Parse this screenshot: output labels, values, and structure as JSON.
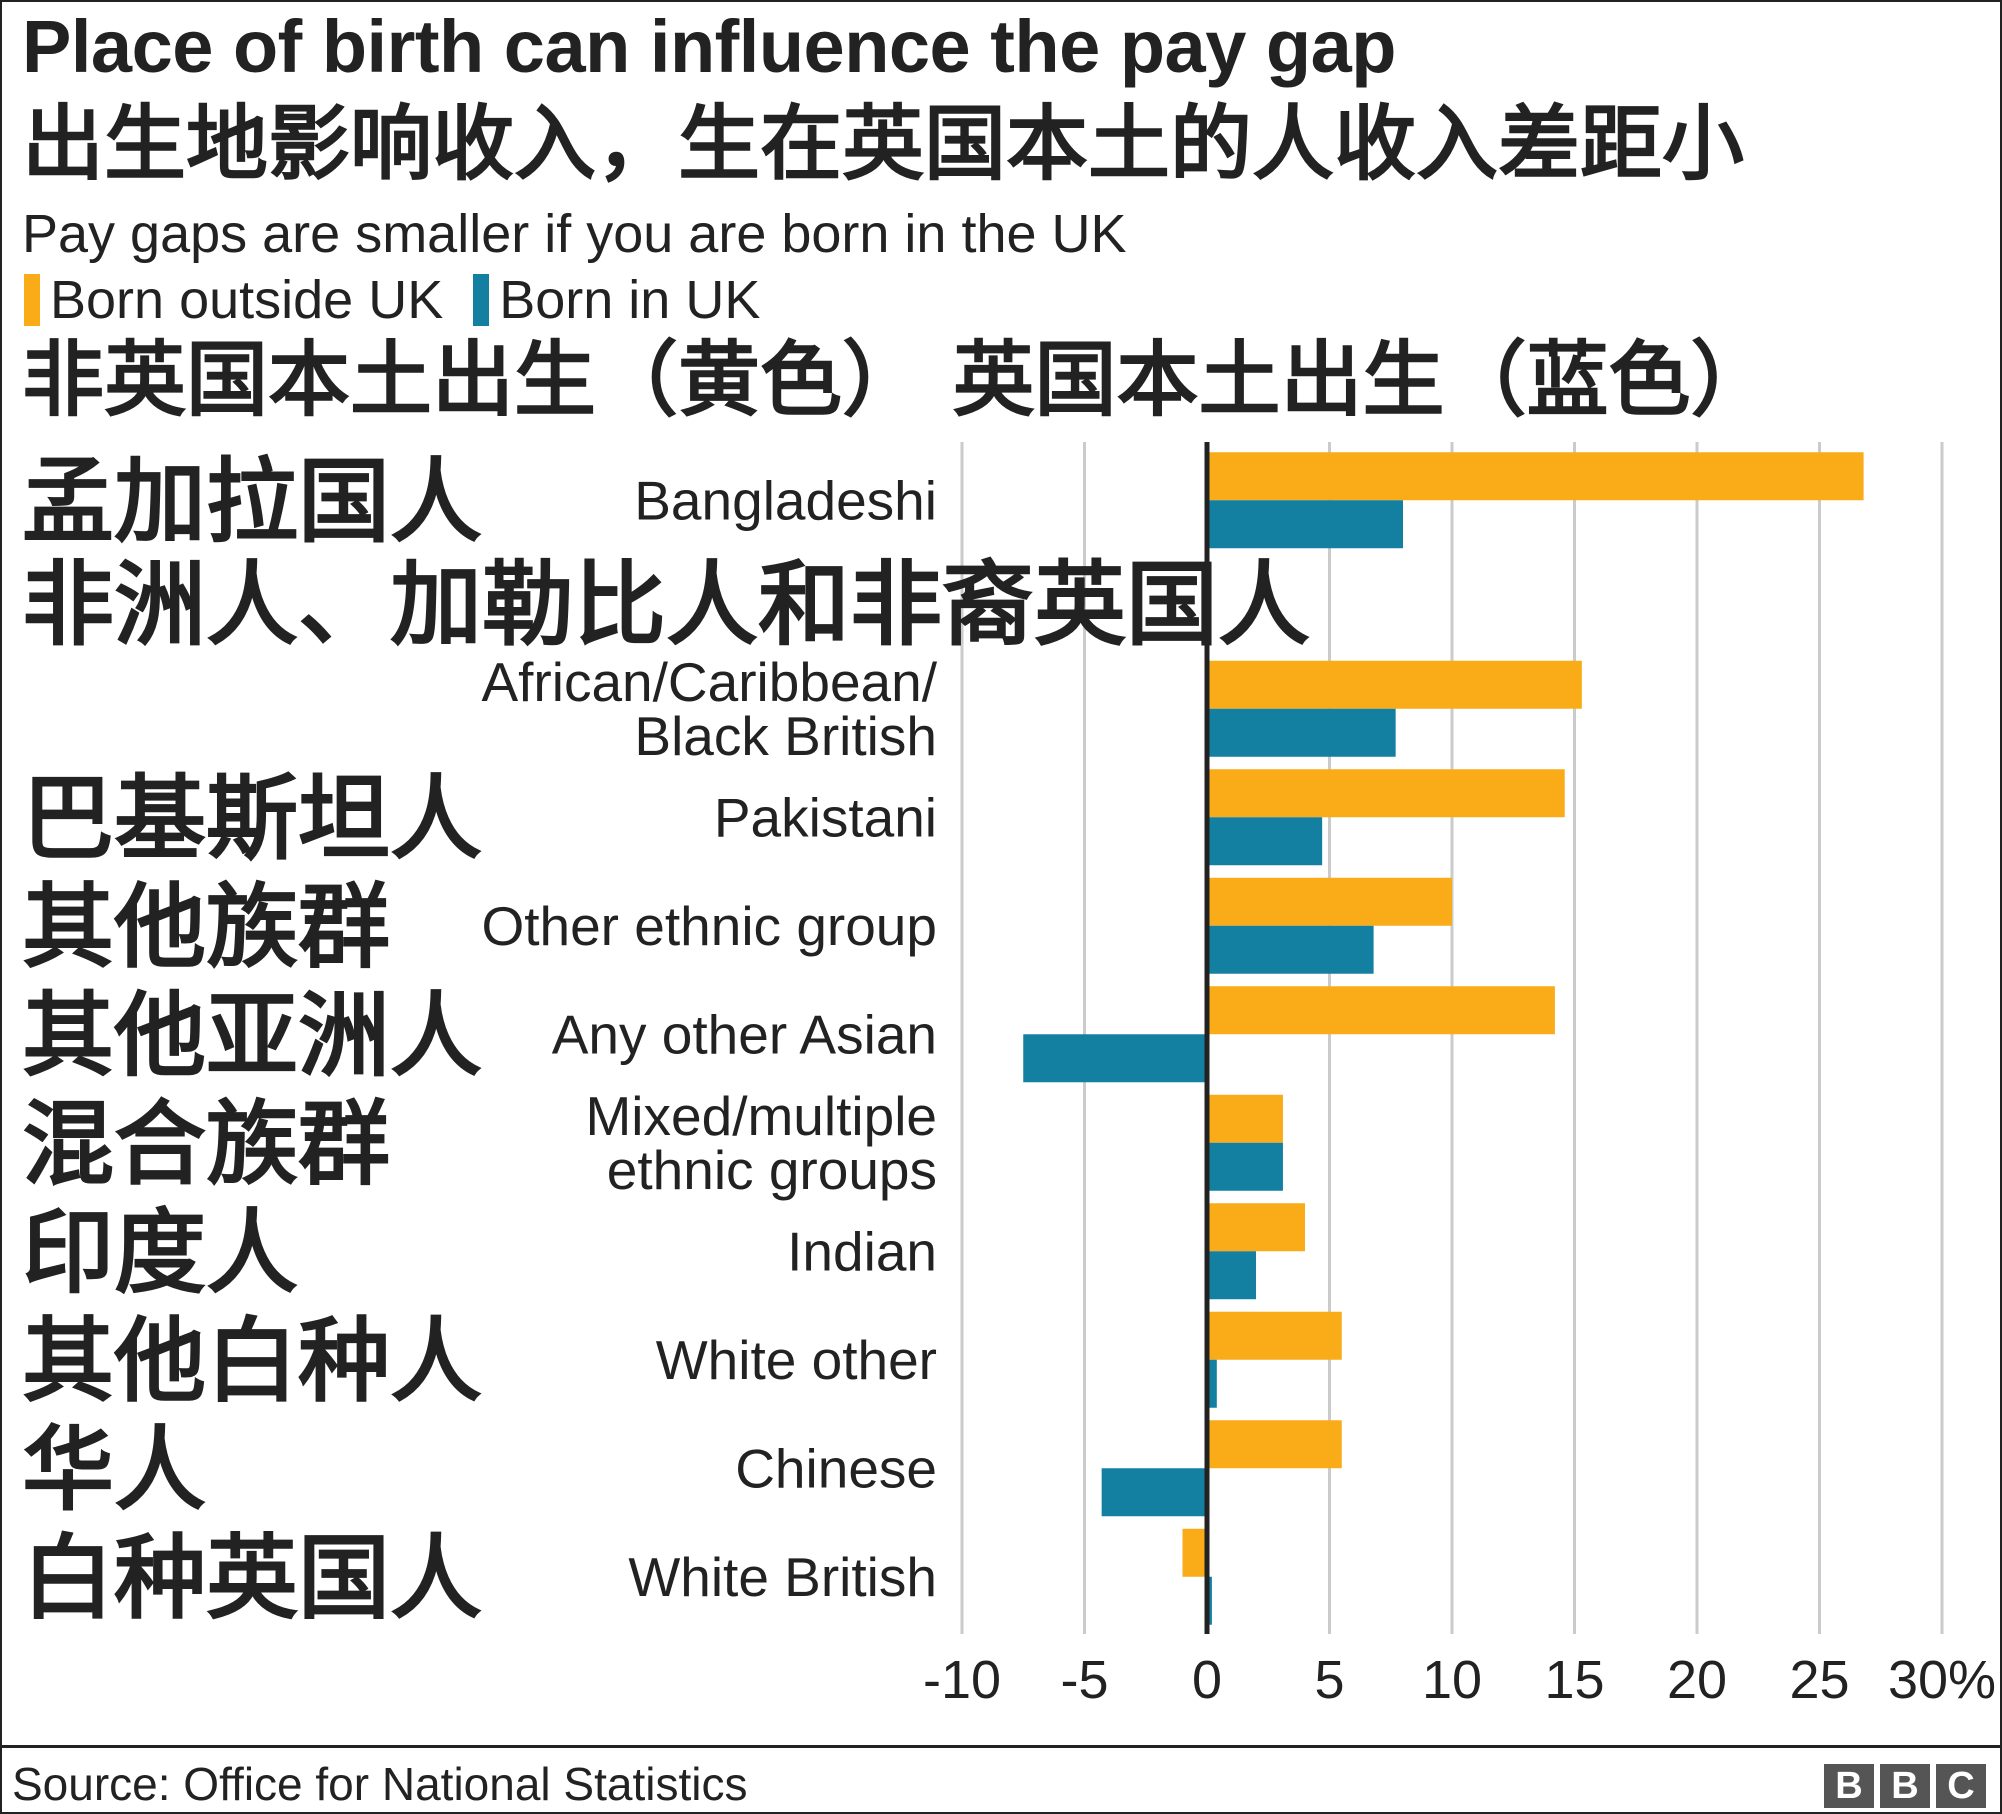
{
  "title": "Place of birth can influence the pay gap",
  "subtitle": "Pay gaps are smaller if you are born in the UK",
  "cn_title": "出生地影响收入，生在英国本土的人收入差距小",
  "legend": {
    "outside": "Born outside UK",
    "inside": "Born in UK",
    "cn": "非英国本土出生（黄色） 英国本土出生（蓝色）"
  },
  "colors": {
    "outside": "#FAAB18",
    "inside": "#1380A1",
    "grid": "#cbcbcb",
    "axis": "#222222"
  },
  "source": "Source: Office for National Statistics",
  "logo": [
    "B",
    "B",
    "C"
  ],
  "chart_data": {
    "type": "bar",
    "orientation": "horizontal",
    "categories": [
      "Bangladeshi",
      "African/Caribbean/Black British",
      "Pakistani",
      "Other ethnic group",
      "Any other Asian",
      "Mixed/multiple ethnic groups",
      "Indian",
      "White other",
      "Chinese",
      "White British"
    ],
    "categories_cn": [
      "孟加拉国人",
      "非洲人、加勒比人和非裔英国人",
      "巴基斯坦人",
      "其他族群",
      "其他亚洲人",
      "混合族群",
      "印度人",
      "其他白种人",
      "华人",
      "白种英国人"
    ],
    "series": [
      {
        "name": "Born outside UK",
        "values": [
          26.8,
          15.3,
          14.6,
          10.0,
          14.2,
          3.1,
          4.0,
          5.5,
          5.5,
          -1.0
        ]
      },
      {
        "name": "Born in UK",
        "values": [
          8.0,
          7.7,
          4.7,
          6.8,
          -7.5,
          3.1,
          2.0,
          0.4,
          -4.3,
          0.2
        ]
      }
    ],
    "xlim": [
      -10,
      30
    ],
    "xticks": [
      "-10",
      "-5",
      "0",
      "5",
      "10",
      "15",
      "20",
      "25",
      "30%"
    ],
    "grid": true,
    "legend": "top-left"
  }
}
